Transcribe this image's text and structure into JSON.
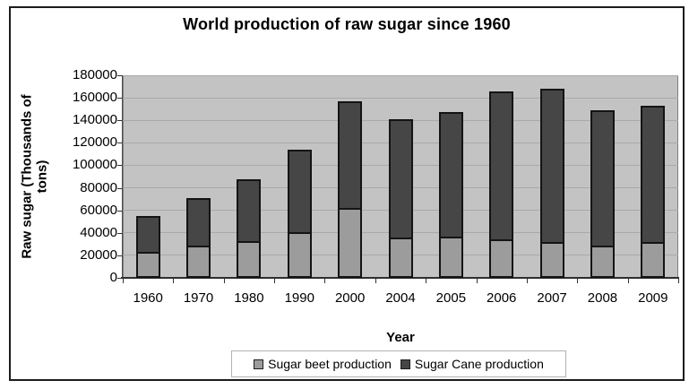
{
  "chart_data": {
    "type": "bar",
    "stacked": true,
    "title": "World production of raw sugar since 1960",
    "xlabel": "Year",
    "ylabel": "Raw sugar (Thousands of tons)",
    "ylabel_display_lines": [
      "Raw sugar (Thousands of",
      "tons)"
    ],
    "categories": [
      "1960",
      "1970",
      "1980",
      "1990",
      "2000",
      "2004",
      "2005",
      "2006",
      "2007",
      "2008",
      "2009"
    ],
    "series": [
      {
        "name": "Sugar beet production",
        "color": "#9c9c9c",
        "values": [
          23000,
          29000,
          33000,
          41000,
          62000,
          36000,
          37000,
          34000,
          32000,
          29000,
          32000
        ]
      },
      {
        "name": "Sugar Cane production",
        "color": "#464646",
        "values": [
          32000,
          42000,
          55000,
          73000,
          95000,
          105000,
          110000,
          132000,
          136000,
          120000,
          121000
        ]
      }
    ],
    "stack_totals": [
      55000,
      71000,
      88000,
      114000,
      157000,
      141000,
      147000,
      166000,
      168000,
      149000,
      153000
    ],
    "ylim": [
      0,
      180000
    ],
    "ytick_step": 20000,
    "yticks": [
      "0",
      "20000",
      "40000",
      "60000",
      "80000",
      "100000",
      "120000",
      "140000",
      "160000",
      "180000"
    ],
    "grid": true,
    "legend_position": "bottom",
    "colors": {
      "plot_background": "#c3c3c3",
      "gridline": "#a9a9a9",
      "bar_border": "#141414",
      "frame_border": "#1c1c1c"
    }
  }
}
